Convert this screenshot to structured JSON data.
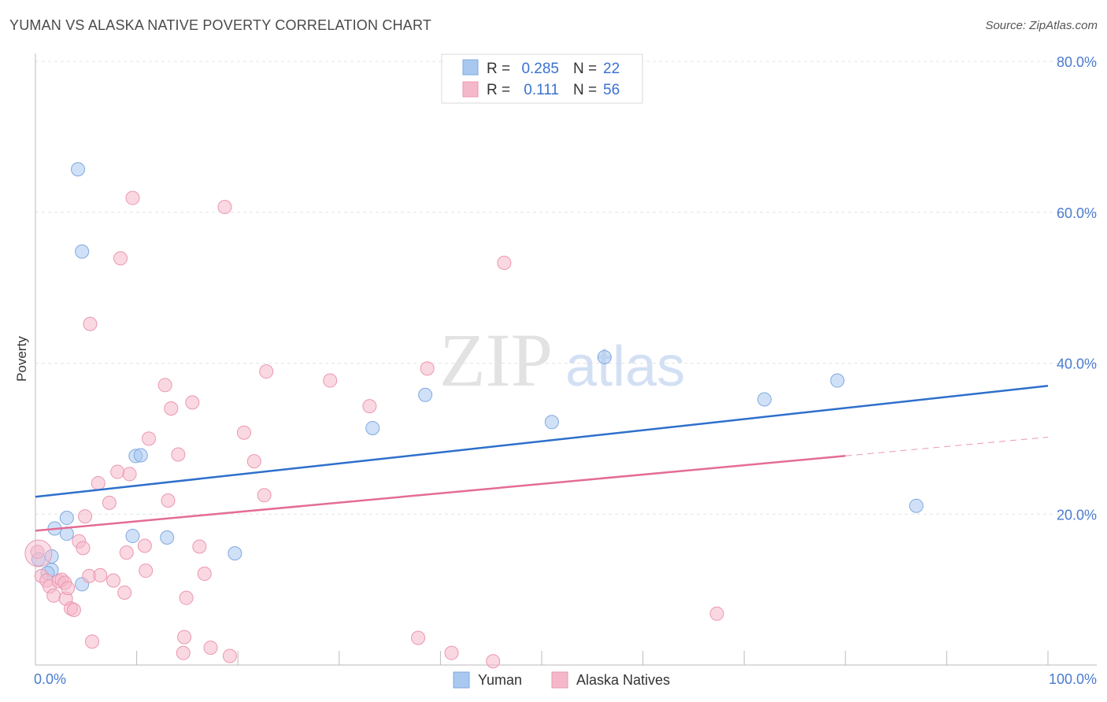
{
  "header": {
    "title": "YUMAN VS ALASKA NATIVE POVERTY CORRELATION CHART",
    "source": "Source: ZipAtlas.com"
  },
  "watermark": {
    "zip": "ZIP",
    "atlas": "atlas"
  },
  "legend": {
    "rows": [
      {
        "r_label": "R =",
        "r_value": "0.285",
        "n_label": "N =",
        "n_value": "22",
        "color": "#a9c8f0"
      },
      {
        "r_label": "R =",
        "r_value": "0.111",
        "n_label": "N =",
        "n_value": "56",
        "color": "#f5b8cb"
      }
    ]
  },
  "chart_data": {
    "type": "scatter",
    "title": "YUMAN VS ALASKA NATIVE POVERTY CORRELATION CHART",
    "xlabel": "",
    "ylabel": "Poverty",
    "xlim": [
      0,
      100
    ],
    "ylim": [
      0,
      80
    ],
    "x_tick_labels": [
      "0.0%",
      "100.0%"
    ],
    "y_ticks": [
      20,
      40,
      60,
      80
    ],
    "y_tick_labels": [
      "20.0%",
      "40.0%",
      "60.0%",
      "80.0%"
    ],
    "grid": true,
    "series": [
      {
        "name": "Yuman",
        "color": "#a9c8f0",
        "stroke": "#7fa8e0",
        "line_color": "#2e6fcc",
        "trend": {
          "x0": 0,
          "y0": 22.3,
          "x1": 100,
          "y1": 37.0,
          "dash_from": null
        },
        "points": [
          [
            0.3,
            14.0
          ],
          [
            1.6,
            14.4
          ],
          [
            1.6,
            12.6
          ],
          [
            1.9,
            18.1
          ],
          [
            3.1,
            19.5
          ],
          [
            3.1,
            17.4
          ],
          [
            4.6,
            10.7
          ],
          [
            4.2,
            65.7
          ],
          [
            4.6,
            54.8
          ],
          [
            9.6,
            17.1
          ],
          [
            9.9,
            27.7
          ],
          [
            10.4,
            27.8
          ],
          [
            13.0,
            16.9
          ],
          [
            19.7,
            14.8
          ],
          [
            33.3,
            31.4
          ],
          [
            38.5,
            35.8
          ],
          [
            51.0,
            32.2
          ],
          [
            56.2,
            40.8
          ],
          [
            72.0,
            35.2
          ],
          [
            79.2,
            37.7
          ],
          [
            87.0,
            21.1
          ],
          [
            1.2,
            12.2
          ]
        ]
      },
      {
        "name": "Alaska Natives",
        "color": "#f5b8cb",
        "stroke": "#eb97b0",
        "line_color": "#e46c95",
        "trend": {
          "x0": 0,
          "y0": 17.8,
          "x1": 100,
          "y1": 30.2,
          "dash_from": 80
        },
        "points": [
          [
            0.2,
            15.0
          ],
          [
            0.6,
            11.8
          ],
          [
            1.1,
            11.2
          ],
          [
            1.4,
            10.4
          ],
          [
            1.8,
            9.2
          ],
          [
            2.3,
            11.1
          ],
          [
            2.6,
            11.3
          ],
          [
            2.9,
            10.9
          ],
          [
            3.0,
            8.8
          ],
          [
            3.2,
            10.2
          ],
          [
            3.5,
            7.5
          ],
          [
            3.8,
            7.3
          ],
          [
            4.3,
            16.4
          ],
          [
            4.7,
            15.5
          ],
          [
            4.9,
            19.7
          ],
          [
            5.3,
            11.8
          ],
          [
            5.4,
            45.2
          ],
          [
            5.6,
            3.1
          ],
          [
            6.2,
            24.1
          ],
          [
            6.4,
            11.9
          ],
          [
            7.3,
            21.5
          ],
          [
            7.7,
            11.2
          ],
          [
            8.1,
            25.6
          ],
          [
            8.4,
            53.9
          ],
          [
            8.8,
            9.6
          ],
          [
            9.0,
            14.9
          ],
          [
            9.3,
            25.3
          ],
          [
            9.6,
            61.9
          ],
          [
            10.8,
            15.8
          ],
          [
            10.9,
            12.5
          ],
          [
            11.2,
            30.0
          ],
          [
            12.8,
            37.1
          ],
          [
            13.1,
            21.8
          ],
          [
            13.4,
            34.0
          ],
          [
            14.1,
            27.9
          ],
          [
            14.6,
            1.6
          ],
          [
            14.7,
            3.7
          ],
          [
            14.9,
            8.9
          ],
          [
            15.5,
            34.8
          ],
          [
            16.2,
            15.7
          ],
          [
            16.7,
            12.1
          ],
          [
            17.3,
            2.3
          ],
          [
            18.7,
            60.7
          ],
          [
            19.2,
            1.2
          ],
          [
            20.6,
            30.8
          ],
          [
            21.6,
            27.0
          ],
          [
            22.6,
            22.5
          ],
          [
            22.8,
            38.9
          ],
          [
            29.1,
            37.7
          ],
          [
            33.0,
            34.3
          ],
          [
            37.8,
            3.6
          ],
          [
            38.7,
            39.3
          ],
          [
            41.1,
            1.6
          ],
          [
            45.2,
            0.5
          ],
          [
            46.3,
            53.3
          ],
          [
            67.3,
            6.8
          ]
        ]
      }
    ]
  },
  "bottom_legend": [
    {
      "label": "Yuman",
      "color": "#a9c8f0"
    },
    {
      "label": "Alaska Natives",
      "color": "#f5b8cb"
    }
  ]
}
